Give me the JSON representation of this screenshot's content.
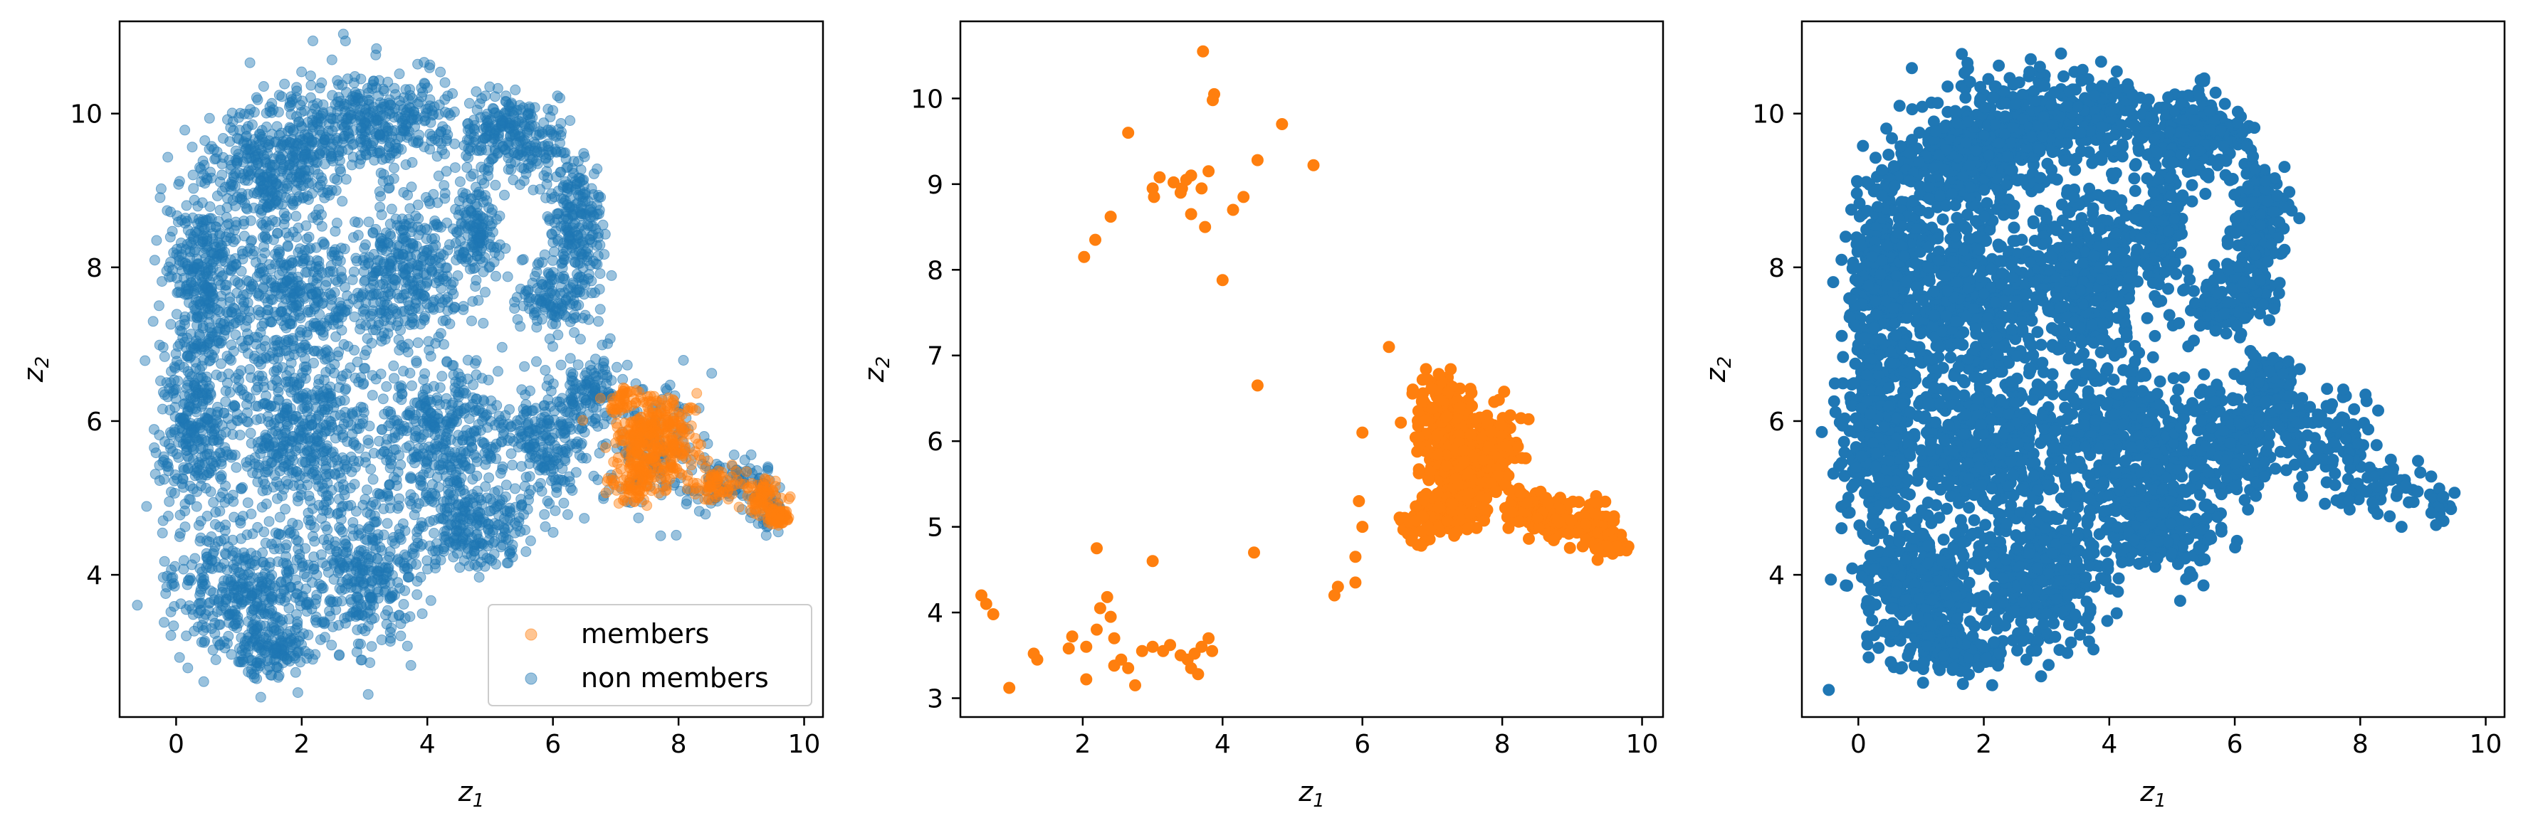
{
  "colors": {
    "members": "#ff7f0e",
    "non_members": "#1f77b4",
    "axes": "#000000",
    "background": "#ffffff"
  },
  "chart_data": [
    {
      "type": "scatter",
      "title": "",
      "xlabel": "z",
      "xlabel_sub": "1",
      "ylabel": "z",
      "ylabel_sub": "2",
      "xlim": [
        -0.9,
        10.3
      ],
      "ylim": [
        2.15,
        11.2
      ],
      "xticks": [
        0,
        2,
        4,
        6,
        8,
        10
      ],
      "yticks": [
        4,
        6,
        8,
        10
      ],
      "legend": {
        "position": "lower-right",
        "entries": [
          "members",
          "non members"
        ]
      },
      "series": [
        {
          "name": "non members",
          "color": "#1f77b4",
          "alpha": 0.45,
          "blobs": [
            [
              1.6,
              9.3,
              1.0,
              0.55,
              360
            ],
            [
              3.1,
              9.9,
              1.4,
              0.55,
              420
            ],
            [
              5.4,
              9.7,
              0.7,
              0.45,
              240
            ],
            [
              6.4,
              8.6,
              0.35,
              0.6,
              200
            ],
            [
              6.0,
              7.6,
              0.55,
              0.4,
              140
            ],
            [
              0.4,
              7.9,
              0.5,
              1.0,
              300
            ],
            [
              1.8,
              7.6,
              1.0,
              0.9,
              420
            ],
            [
              3.6,
              7.9,
              0.8,
              0.9,
              360
            ],
            [
              4.8,
              8.5,
              0.3,
              0.7,
              140
            ],
            [
              0.3,
              5.9,
              0.5,
              1.1,
              320
            ],
            [
              2.0,
              5.8,
              1.0,
              0.9,
              460
            ],
            [
              4.2,
              5.8,
              1.0,
              0.9,
              420
            ],
            [
              5.9,
              5.7,
              0.6,
              0.6,
              200
            ],
            [
              6.6,
              6.4,
              0.4,
              0.4,
              100
            ],
            [
              7.6,
              5.7,
              0.7,
              0.7,
              140
            ],
            [
              8.8,
              5.2,
              0.6,
              0.3,
              80
            ],
            [
              9.4,
              4.9,
              0.2,
              0.3,
              40
            ],
            [
              1.0,
              3.8,
              0.9,
              0.7,
              380
            ],
            [
              2.9,
              4.0,
              0.9,
              0.8,
              340
            ],
            [
              4.8,
              4.6,
              0.8,
              0.5,
              220
            ],
            [
              1.6,
              3.0,
              0.6,
              0.25,
              120
            ]
          ]
        },
        {
          "name": "members",
          "color": "#ff7f0e",
          "alpha": 0.45,
          "blobs": [
            [
              7.6,
              5.8,
              0.55,
              0.45,
              320
            ],
            [
              7.3,
              5.2,
              0.35,
              0.25,
              80
            ],
            [
              8.6,
              5.2,
              0.35,
              0.2,
              60
            ],
            [
              9.3,
              5.0,
              0.25,
              0.2,
              70
            ],
            [
              9.6,
              4.75,
              0.12,
              0.1,
              80
            ],
            [
              7.1,
              6.3,
              0.2,
              0.2,
              40
            ]
          ]
        }
      ]
    },
    {
      "type": "scatter",
      "title": "",
      "xlabel": "z",
      "xlabel_sub": "1",
      "ylabel": "z",
      "ylabel_sub": "2",
      "xlim": [
        0.25,
        10.3
      ],
      "ylim": [
        2.78,
        10.9
      ],
      "xticks": [
        2,
        4,
        6,
        8,
        10
      ],
      "yticks": [
        3,
        4,
        5,
        6,
        7,
        8,
        9,
        10
      ],
      "series": [
        {
          "name": "members",
          "color": "#ff7f0e",
          "alpha": 1.0,
          "points": [
            [
              3.72,
              10.55
            ],
            [
              3.88,
              10.05
            ],
            [
              3.86,
              9.98
            ],
            [
              4.85,
              9.7
            ],
            [
              2.65,
              9.6
            ],
            [
              4.5,
              9.28
            ],
            [
              5.3,
              9.22
            ],
            [
              3.55,
              9.1
            ],
            [
              3.8,
              9.15
            ],
            [
              3.1,
              9.08
            ],
            [
              3.3,
              9.02
            ],
            [
              3.42,
              8.95
            ],
            [
              3.48,
              9.05
            ],
            [
              3.0,
              8.95
            ],
            [
              3.02,
              8.85
            ],
            [
              3.4,
              8.9
            ],
            [
              3.7,
              8.95
            ],
            [
              4.3,
              8.85
            ],
            [
              4.15,
              8.7
            ],
            [
              3.55,
              8.65
            ],
            [
              3.75,
              8.5
            ],
            [
              2.4,
              8.62
            ],
            [
              2.18,
              8.35
            ],
            [
              2.02,
              8.15
            ],
            [
              4.0,
              7.88
            ],
            [
              4.5,
              6.65
            ],
            [
              6.38,
              7.1
            ],
            [
              6.0,
              6.1
            ],
            [
              5.95,
              5.3
            ],
            [
              6.0,
              5.0
            ],
            [
              5.9,
              4.65
            ],
            [
              5.65,
              4.3
            ],
            [
              5.6,
              4.2
            ],
            [
              5.9,
              4.35
            ],
            [
              4.45,
              4.7
            ],
            [
              3.0,
              4.6
            ],
            [
              2.2,
              4.75
            ],
            [
              0.55,
              4.2
            ],
            [
              0.62,
              4.1
            ],
            [
              0.72,
              3.98
            ],
            [
              2.35,
              4.18
            ],
            [
              2.25,
              4.05
            ],
            [
              2.4,
              3.95
            ],
            [
              2.2,
              3.8
            ],
            [
              2.45,
              3.7
            ],
            [
              1.85,
              3.72
            ],
            [
              2.05,
              3.6
            ],
            [
              1.8,
              3.58
            ],
            [
              1.3,
              3.52
            ],
            [
              1.35,
              3.45
            ],
            [
              2.55,
              3.45
            ],
            [
              2.45,
              3.38
            ],
            [
              2.85,
              3.55
            ],
            [
              3.0,
              3.6
            ],
            [
              3.15,
              3.55
            ],
            [
              3.25,
              3.62
            ],
            [
              3.4,
              3.5
            ],
            [
              3.5,
              3.45
            ],
            [
              3.6,
              3.52
            ],
            [
              3.7,
              3.6
            ],
            [
              3.8,
              3.7
            ],
            [
              3.55,
              3.35
            ],
            [
              3.65,
              3.28
            ],
            [
              3.85,
              3.55
            ],
            [
              2.65,
              3.35
            ],
            [
              2.05,
              3.22
            ],
            [
              2.75,
              3.15
            ],
            [
              0.95,
              3.12
            ]
          ],
          "blobs": [
            [
              7.55,
              5.85,
              0.55,
              0.45,
              420
            ],
            [
              7.05,
              6.45,
              0.25,
              0.25,
              60
            ],
            [
              7.3,
              5.2,
              0.35,
              0.25,
              100
            ],
            [
              8.6,
              5.15,
              0.4,
              0.22,
              110
            ],
            [
              9.3,
              5.05,
              0.25,
              0.2,
              80
            ],
            [
              9.55,
              4.8,
              0.15,
              0.1,
              110
            ],
            [
              6.8,
              5.0,
              0.2,
              0.25,
              30
            ]
          ]
        }
      ]
    },
    {
      "type": "scatter",
      "title": "",
      "xlabel": "z",
      "xlabel_sub": "1",
      "ylabel": "z",
      "ylabel_sub": "2",
      "xlim": [
        -0.9,
        10.3
      ],
      "ylim": [
        2.15,
        11.2
      ],
      "xticks": [
        0,
        2,
        4,
        6,
        8,
        10
      ],
      "yticks": [
        4,
        6,
        8,
        10
      ],
      "series": [
        {
          "name": "non members",
          "color": "#1f77b4",
          "alpha": 1.0,
          "blobs": [
            [
              1.6,
              9.3,
              1.0,
              0.55,
              360
            ],
            [
              3.1,
              9.9,
              1.4,
              0.55,
              420
            ],
            [
              5.4,
              9.7,
              0.7,
              0.45,
              240
            ],
            [
              6.4,
              8.6,
              0.35,
              0.6,
              200
            ],
            [
              6.0,
              7.6,
              0.55,
              0.4,
              140
            ],
            [
              0.4,
              7.9,
              0.5,
              1.0,
              300
            ],
            [
              1.8,
              7.6,
              1.0,
              0.9,
              420
            ],
            [
              3.6,
              7.9,
              0.8,
              0.9,
              360
            ],
            [
              4.8,
              8.5,
              0.3,
              0.7,
              140
            ],
            [
              0.3,
              5.9,
              0.5,
              1.1,
              320
            ],
            [
              2.0,
              5.8,
              1.0,
              0.9,
              460
            ],
            [
              4.2,
              5.8,
              1.0,
              0.9,
              420
            ],
            [
              5.9,
              5.7,
              0.6,
              0.6,
              200
            ],
            [
              6.6,
              6.4,
              0.4,
              0.4,
              100
            ],
            [
              7.4,
              5.8,
              0.7,
              0.6,
              110
            ],
            [
              8.4,
              5.2,
              0.5,
              0.3,
              50
            ],
            [
              9.3,
              4.9,
              0.15,
              0.25,
              20
            ],
            [
              1.0,
              3.8,
              0.9,
              0.7,
              380
            ],
            [
              2.9,
              4.0,
              0.9,
              0.8,
              340
            ],
            [
              4.8,
              4.6,
              0.8,
              0.5,
              220
            ],
            [
              1.6,
              3.0,
              0.6,
              0.25,
              120
            ]
          ]
        }
      ]
    }
  ]
}
